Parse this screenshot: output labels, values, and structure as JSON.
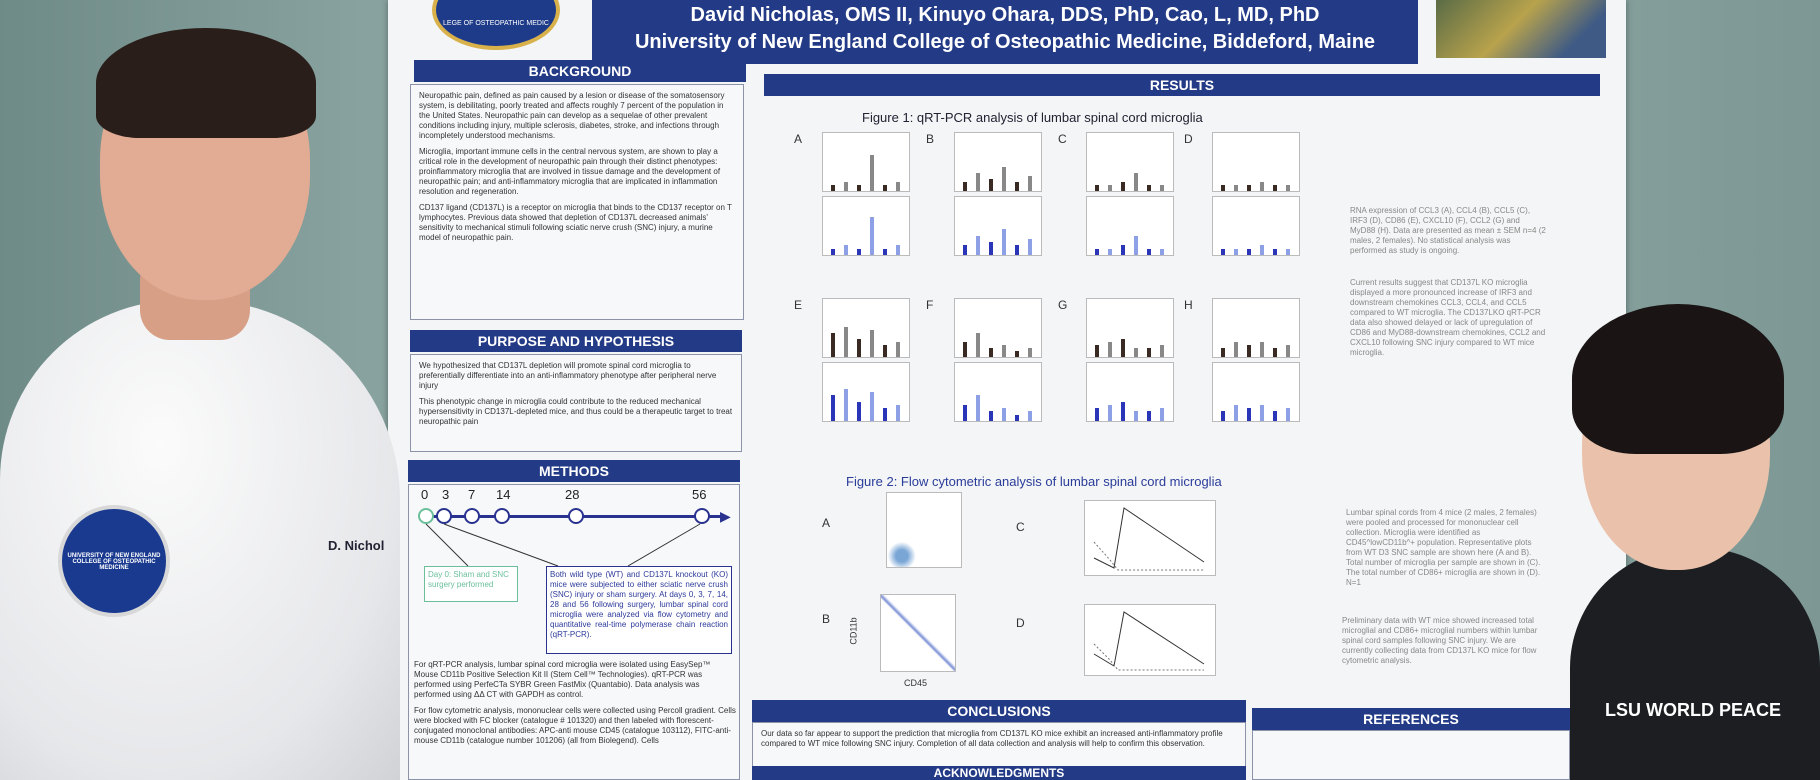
{
  "poster": {
    "authors": "David Nicholas, OMS II, Kinuyo Ohara, DDS, PhD, Cao, L, MD, PhD",
    "institution": "University of New England College of Osteopathic Medicine, Biddeford, Maine",
    "logo_text": "LEGE OF OSTEOPATHIC MEDIC"
  },
  "background": {
    "title": "BACKGROUND",
    "paragraphs": [
      "Neuropathic pain, defined as pain caused by a lesion or disease of the somatosensory system, is debilitating, poorly treated and affects roughly 7 percent of the population in the United States. Neuropathic pain can develop as a sequelae of other prevalent conditions including injury, multiple sclerosis, diabetes, stroke, and infections through incompletely understood mechanisms.",
      "Microglia, important immune cells in the central nervous system, are shown to play a critical role in the development of neuropathic pain through their distinct phenotypes: proinflammatory microglia that are involved in tissue damage and the development of neuropathic pain; and anti-inflammatory microglia that are implicated in inflammation resolution and regeneration.",
      "CD137 ligand (CD137L) is a receptor on microglia that binds to the CD137 receptor on T lymphocytes. Previous data showed that depletion of CD137L decreased animals' sensitivity to mechanical stimuli following sciatic nerve crush (SNC) injury, a murine model of neuropathic pain."
    ]
  },
  "purpose": {
    "title": "PURPOSE AND HYPOTHESIS",
    "paragraphs": [
      "We hypothesized that CD137L depletion will promote spinal cord microglia to preferentially differentiate into an anti-inflammatory phenotype after peripheral nerve injury",
      "This phenotypic change in microglia could contribute to the reduced mechanical hypersensitivity in CD137L-depleted mice, and thus could be a therapeutic target to treat neuropathic pain"
    ]
  },
  "methods": {
    "title": "METHODS",
    "timeline": [
      "0",
      "3",
      "7",
      "14",
      "28",
      "56"
    ],
    "day0_box": "Day 0: Sham and SNC surgery performed",
    "main_box": "Both wild type (WT) and CD137L knockout (KO) mice were subjected to either sciatic nerve crush (SNC) injury or sham surgery. At days 0, 3, 7, 14, 28 and 56 following surgery, lumbar spinal cord microglia were analyzed via flow cytometry and quantitative real-time polymerase chain reaction (qRT-PCR).",
    "bullets": [
      "For qRT-PCR analysis, lumbar spinal cord microglia were isolated using EasySep™ Mouse CD11b Positive Selection Kit II (Stem Cell™ Technologies). qRT-PCR was performed using PerfeCTa SYBR Green FastMix (Quantabio). Data analysis was performed using ΔΔ CT with GAPDH as control.",
      "For flow cytometric analysis, mononuclear cells were collected using Percoll gradient. Cells were blocked with FC blocker (catalogue # 101320) and then labeled with florescent-conjugated monoclonal antibodies: APC-anti mouse CD45 (catalogue 103112), FITC-anti-mouse CD11b (catalogue number 101206) (all from Biolegend). Cells"
    ]
  },
  "results": {
    "title": "RESULTS",
    "fig1_title": "Figure 1: qRT-PCR analysis of lumbar spinal cord microglia",
    "fig2_title": "Figure 2: Flow cytometric analysis of lumbar spinal cord microglia",
    "fig1_panels": [
      "A",
      "B",
      "C",
      "D",
      "E",
      "F",
      "G",
      "H"
    ],
    "fig2_panels": [
      "A",
      "C",
      "B",
      "D"
    ],
    "fig1_desc": "RNA expression of CCL3 (A), CCL4 (B), CCL5 (C), IRF3 (D), CD86 (E), CXCL10 (F), CCL2 (G) and MyD88 (H). Data are presented as mean ± SEM n=4 (2 males, 2 females). No statistical analysis was performed as study is ongoing.",
    "fig1_desc2": "Current results suggest that CD137L KO microglia displayed a more pronounced increase of IRF3 and downstream chemokines CCL3, CCL4, and CCL5 compared to WT microglia. The CD137LKO qRT-PCR data also showed delayed or lack of upregulation of CD86 and MyD88-downstream chemokines, CCL2 and CXCL10 following SNC injury compared to WT mice microglia.",
    "fig2_desc": "Lumbar spinal cords from 4 mice (2 males, 2 females) were pooled and processed for mononuclear cell collection. Microglia were identified as CD45^lowCD11b^+ population. Representative plots from WT D3 SNC sample are shown here (A and B). Total number of microglia per sample are shown in (C). The total number of CD86+ microglia are shown in (D). N=1",
    "fig2_desc2": "Preliminary data with WT mice showed increased total microglial and CD86+ microglial numbers within lumbar spinal cord samples following SNC injury. We are currently collecting data from CD137L KO mice for flow cytometric analysis.",
    "flow_x_label": "CD45",
    "flow_y_label": "CD11b"
  },
  "conclusions": {
    "title": "CONCLUSIONS",
    "text": "Our data so far appear to support the prediction that microglia from CD137L KO mice exhibit an increased anti-inflammatory profile compared to WT mice following SNC injury. Completion of all data collection and analysis will help to confirm this observation."
  },
  "acknowledgments": {
    "title": "ACKNOWLEDGMENTS"
  },
  "references": {
    "title": "REFERENCES"
  },
  "people": {
    "name_tag": "D. Nichol",
    "badge_text": "UNIVERSITY OF NEW ENGLAND COLLEGE OF OSTEOPATHIC MEDICINE",
    "hoodie_text": "LSU WORLD PEACE"
  }
}
